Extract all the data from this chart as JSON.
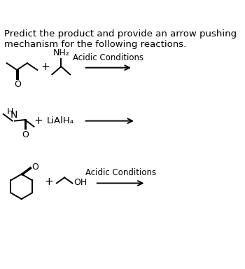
{
  "title_text": "Predict the product and provide an arrow pushing\nmechanism for the following reactions.",
  "title_fontsize": 9.5,
  "bg_color": "#ffffff",
  "text_color": "#000000",
  "reaction1_label": "Acidic Conditions",
  "reaction2_label": "LiAlH₄",
  "reaction3_label": "Acidic Conditions",
  "plus_symbol": "+",
  "line_color": "#000000",
  "line_width": 1.4,
  "font_size_labels": 8.5,
  "font_size_chem": 9,
  "font_size_atom": 9
}
